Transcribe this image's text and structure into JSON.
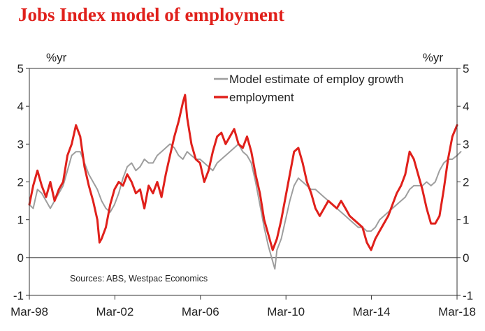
{
  "chart_data": {
    "type": "line",
    "title": "Jobs Index model of employment",
    "ylabel_left": "%yr",
    "ylabel_right": "%yr",
    "ylim": [
      -1,
      5
    ],
    "yticks": [
      -1,
      0,
      1,
      2,
      3,
      4,
      5
    ],
    "x_start": 1998.17,
    "x_end": 2018.17,
    "xticks": [
      {
        "label": "Mar-98",
        "x": 1998.17
      },
      {
        "label": "Mar-02",
        "x": 2002.17
      },
      {
        "label": "Mar-06",
        "x": 2006.17
      },
      {
        "label": "Mar-10",
        "x": 2010.17
      },
      {
        "label": "Mar-14",
        "x": 2014.17
      },
      {
        "label": "Mar-18",
        "x": 2018.17
      }
    ],
    "source": "Sources: ABS, Westpac Economics",
    "legend_position": "top-right",
    "series": [
      {
        "name": "Model estimate of employ growth",
        "color": "#9e9e9e",
        "points": [
          [
            1998.17,
            1.4
          ],
          [
            1998.35,
            1.3
          ],
          [
            1998.55,
            1.8
          ],
          [
            1998.75,
            1.7
          ],
          [
            1998.95,
            1.5
          ],
          [
            1999.15,
            1.3
          ],
          [
            1999.35,
            1.5
          ],
          [
            1999.55,
            1.7
          ],
          [
            1999.75,
            1.9
          ],
          [
            1999.95,
            2.3
          ],
          [
            2000.15,
            2.7
          ],
          [
            2000.35,
            2.8
          ],
          [
            2000.55,
            2.8
          ],
          [
            2000.75,
            2.5
          ],
          [
            2000.95,
            2.2
          ],
          [
            2001.15,
            2.0
          ],
          [
            2001.35,
            1.8
          ],
          [
            2001.55,
            1.5
          ],
          [
            2001.75,
            1.3
          ],
          [
            2001.95,
            1.2
          ],
          [
            2002.15,
            1.4
          ],
          [
            2002.35,
            1.7
          ],
          [
            2002.55,
            2.1
          ],
          [
            2002.75,
            2.4
          ],
          [
            2002.95,
            2.5
          ],
          [
            2003.15,
            2.3
          ],
          [
            2003.35,
            2.4
          ],
          [
            2003.55,
            2.6
          ],
          [
            2003.75,
            2.5
          ],
          [
            2003.95,
            2.5
          ],
          [
            2004.15,
            2.7
          ],
          [
            2004.35,
            2.8
          ],
          [
            2004.55,
            2.9
          ],
          [
            2004.75,
            3.0
          ],
          [
            2004.95,
            2.9
          ],
          [
            2005.15,
            2.7
          ],
          [
            2005.35,
            2.6
          ],
          [
            2005.55,
            2.8
          ],
          [
            2005.75,
            2.7
          ],
          [
            2005.95,
            2.6
          ],
          [
            2006.15,
            2.6
          ],
          [
            2006.35,
            2.5
          ],
          [
            2006.55,
            2.4
          ],
          [
            2006.75,
            2.3
          ],
          [
            2006.95,
            2.5
          ],
          [
            2007.15,
            2.6
          ],
          [
            2007.35,
            2.7
          ],
          [
            2007.55,
            2.8
          ],
          [
            2007.75,
            2.9
          ],
          [
            2007.95,
            3.0
          ],
          [
            2008.15,
            2.8
          ],
          [
            2008.35,
            2.7
          ],
          [
            2008.55,
            2.5
          ],
          [
            2008.75,
            2.0
          ],
          [
            2008.95,
            1.4
          ],
          [
            2009.15,
            0.8
          ],
          [
            2009.35,
            0.3
          ],
          [
            2009.55,
            -0.1
          ],
          [
            2009.65,
            -0.3
          ],
          [
            2009.75,
            0.2
          ],
          [
            2009.95,
            0.5
          ],
          [
            2010.15,
            1.0
          ],
          [
            2010.35,
            1.5
          ],
          [
            2010.55,
            1.9
          ],
          [
            2010.75,
            2.1
          ],
          [
            2010.95,
            2.0
          ],
          [
            2011.15,
            1.9
          ],
          [
            2011.35,
            1.8
          ],
          [
            2011.55,
            1.8
          ],
          [
            2011.75,
            1.7
          ],
          [
            2011.95,
            1.6
          ],
          [
            2012.15,
            1.5
          ],
          [
            2012.35,
            1.4
          ],
          [
            2012.55,
            1.3
          ],
          [
            2012.75,
            1.2
          ],
          [
            2012.95,
            1.1
          ],
          [
            2013.15,
            1.0
          ],
          [
            2013.35,
            0.9
          ],
          [
            2013.55,
            0.8
          ],
          [
            2013.75,
            0.8
          ],
          [
            2013.95,
            0.7
          ],
          [
            2014.15,
            0.7
          ],
          [
            2014.35,
            0.8
          ],
          [
            2014.55,
            1.0
          ],
          [
            2014.75,
            1.1
          ],
          [
            2014.95,
            1.2
          ],
          [
            2015.15,
            1.3
          ],
          [
            2015.35,
            1.4
          ],
          [
            2015.55,
            1.5
          ],
          [
            2015.75,
            1.6
          ],
          [
            2015.95,
            1.8
          ],
          [
            2016.15,
            1.9
          ],
          [
            2016.35,
            1.9
          ],
          [
            2016.55,
            1.9
          ],
          [
            2016.75,
            2.0
          ],
          [
            2016.95,
            1.9
          ],
          [
            2017.15,
            2.0
          ],
          [
            2017.35,
            2.3
          ],
          [
            2017.55,
            2.5
          ],
          [
            2017.75,
            2.6
          ],
          [
            2017.95,
            2.6
          ],
          [
            2018.17,
            2.7
          ],
          [
            2018.35,
            2.8
          ]
        ]
      },
      {
        "name": "employment",
        "color": "#e0201b",
        "points": [
          [
            1998.17,
            1.4
          ],
          [
            1998.35,
            1.9
          ],
          [
            1998.55,
            2.3
          ],
          [
            1998.75,
            1.9
          ],
          [
            1998.95,
            1.6
          ],
          [
            1999.15,
            2.0
          ],
          [
            1999.35,
            1.5
          ],
          [
            1999.55,
            1.8
          ],
          [
            1999.75,
            2.0
          ],
          [
            1999.95,
            2.7
          ],
          [
            2000.15,
            3.0
          ],
          [
            2000.35,
            3.5
          ],
          [
            2000.55,
            3.2
          ],
          [
            2000.75,
            2.4
          ],
          [
            2000.95,
            1.9
          ],
          [
            2001.15,
            1.5
          ],
          [
            2001.35,
            1.0
          ],
          [
            2001.45,
            0.4
          ],
          [
            2001.55,
            0.5
          ],
          [
            2001.75,
            0.8
          ],
          [
            2001.95,
            1.4
          ],
          [
            2002.15,
            1.8
          ],
          [
            2002.35,
            2.0
          ],
          [
            2002.55,
            1.9
          ],
          [
            2002.75,
            2.2
          ],
          [
            2002.95,
            2.0
          ],
          [
            2003.15,
            1.7
          ],
          [
            2003.35,
            1.8
          ],
          [
            2003.55,
            1.3
          ],
          [
            2003.75,
            1.9
          ],
          [
            2003.95,
            1.7
          ],
          [
            2004.15,
            2.0
          ],
          [
            2004.35,
            1.6
          ],
          [
            2004.55,
            2.2
          ],
          [
            2004.75,
            2.7
          ],
          [
            2004.95,
            3.2
          ],
          [
            2005.15,
            3.6
          ],
          [
            2005.35,
            4.1
          ],
          [
            2005.45,
            4.3
          ],
          [
            2005.55,
            3.7
          ],
          [
            2005.75,
            3.0
          ],
          [
            2005.95,
            2.6
          ],
          [
            2006.15,
            2.5
          ],
          [
            2006.35,
            2.0
          ],
          [
            2006.55,
            2.3
          ],
          [
            2006.75,
            2.8
          ],
          [
            2006.95,
            3.2
          ],
          [
            2007.15,
            3.3
          ],
          [
            2007.35,
            3.0
          ],
          [
            2007.55,
            3.2
          ],
          [
            2007.75,
            3.4
          ],
          [
            2007.95,
            3.0
          ],
          [
            2008.15,
            2.9
          ],
          [
            2008.35,
            3.2
          ],
          [
            2008.55,
            2.8
          ],
          [
            2008.75,
            2.2
          ],
          [
            2008.95,
            1.7
          ],
          [
            2009.15,
            1.0
          ],
          [
            2009.35,
            0.6
          ],
          [
            2009.55,
            0.2
          ],
          [
            2009.75,
            0.5
          ],
          [
            2009.95,
            1.0
          ],
          [
            2010.15,
            1.6
          ],
          [
            2010.35,
            2.2
          ],
          [
            2010.55,
            2.8
          ],
          [
            2010.75,
            2.9
          ],
          [
            2010.95,
            2.5
          ],
          [
            2011.15,
            2.0
          ],
          [
            2011.35,
            1.7
          ],
          [
            2011.55,
            1.3
          ],
          [
            2011.75,
            1.1
          ],
          [
            2011.95,
            1.3
          ],
          [
            2012.15,
            1.5
          ],
          [
            2012.35,
            1.4
          ],
          [
            2012.55,
            1.3
          ],
          [
            2012.75,
            1.5
          ],
          [
            2012.95,
            1.3
          ],
          [
            2013.15,
            1.1
          ],
          [
            2013.35,
            1.0
          ],
          [
            2013.55,
            0.9
          ],
          [
            2013.75,
            0.8
          ],
          [
            2013.95,
            0.4
          ],
          [
            2014.15,
            0.2
          ],
          [
            2014.35,
            0.5
          ],
          [
            2014.55,
            0.7
          ],
          [
            2014.75,
            0.9
          ],
          [
            2014.95,
            1.1
          ],
          [
            2015.15,
            1.4
          ],
          [
            2015.35,
            1.7
          ],
          [
            2015.55,
            1.9
          ],
          [
            2015.75,
            2.2
          ],
          [
            2015.95,
            2.8
          ],
          [
            2016.15,
            2.6
          ],
          [
            2016.35,
            2.2
          ],
          [
            2016.55,
            1.8
          ],
          [
            2016.75,
            1.3
          ],
          [
            2016.95,
            0.9
          ],
          [
            2017.15,
            0.9
          ],
          [
            2017.35,
            1.1
          ],
          [
            2017.55,
            1.8
          ],
          [
            2017.75,
            2.6
          ],
          [
            2017.95,
            3.2
          ],
          [
            2018.17,
            3.5
          ]
        ]
      }
    ]
  }
}
